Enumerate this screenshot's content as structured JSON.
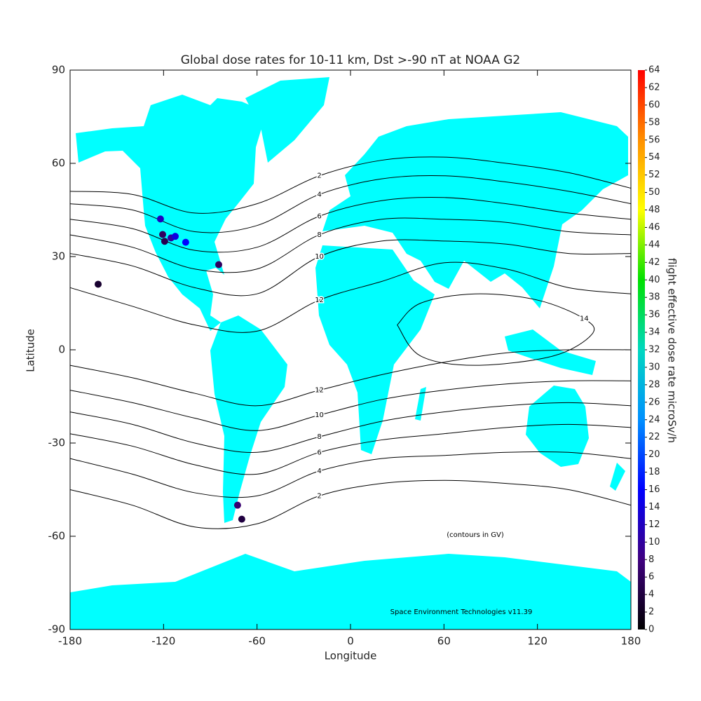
{
  "chart_data": {
    "type": "map",
    "title": "Global dose rates for 10-11 km, Dst >-90 nT at NOAA G2",
    "x_label": "Longitude",
    "y_label": "Latitude",
    "xlim": [
      -180,
      180
    ],
    "ylim": [
      -90,
      90
    ],
    "xticks": [
      -180,
      -120,
      -60,
      0,
      60,
      120,
      180
    ],
    "yticks": [
      -90,
      -60,
      -30,
      0,
      30,
      60,
      90
    ],
    "land_color": "#00ffff",
    "contour_color": "#000000",
    "annotations": [
      "(contours in GV)",
      "Space Environment Technologies v11.39"
    ],
    "colorbar": {
      "label": "flight effective dose rate microSv/h",
      "clim": [
        0,
        64
      ],
      "ticks": [
        0,
        2,
        4,
        6,
        8,
        10,
        12,
        14,
        16,
        18,
        20,
        22,
        24,
        26,
        28,
        30,
        32,
        34,
        36,
        38,
        40,
        42,
        44,
        46,
        48,
        50,
        52,
        54,
        56,
        58,
        60,
        62,
        64
      ],
      "colors": [
        "#000000",
        "#400080",
        "#0000ff",
        "#0090ff",
        "#00d8c0",
        "#00e000",
        "#ffff00",
        "#ff9000",
        "#ff0000"
      ]
    },
    "points": {
      "x": [
        -122,
        -120.6,
        -119.3,
        -115.2,
        -112.5,
        -105.8,
        -84.6,
        -162,
        -72.5,
        -69.8
      ],
      "y": [
        42.1,
        37.1,
        34.9,
        36,
        36.5,
        34.6,
        27.4,
        21.1,
        -50,
        -54.5
      ],
      "values": [
        12,
        6,
        5,
        10,
        14,
        16,
        6,
        3,
        7,
        4
      ]
    },
    "contours": [
      {
        "level": 2,
        "lon": [
          -180,
          -140,
          -100,
          -60,
          -20,
          20,
          60,
          100,
          140,
          180
        ],
        "lat": [
          51,
          50,
          44,
          47,
          56,
          61,
          62,
          60,
          57,
          52
        ]
      },
      {
        "level": 4,
        "lon": [
          -180,
          -140,
          -100,
          -60,
          -20,
          20,
          60,
          100,
          140,
          180
        ],
        "lat": [
          47,
          45,
          38,
          40,
          50,
          55,
          56,
          54,
          51,
          47
        ]
      },
      {
        "level": 6,
        "lon": [
          -180,
          -140,
          -100,
          -60,
          -20,
          20,
          60,
          100,
          140,
          180
        ],
        "lat": [
          42,
          39,
          32,
          33,
          43,
          48,
          49,
          47,
          44,
          42
        ]
      },
      {
        "level": 8,
        "lon": [
          -180,
          -140,
          -100,
          -60,
          -20,
          20,
          60,
          100,
          140,
          180
        ],
        "lat": [
          37,
          33,
          26,
          26,
          37,
          42,
          42,
          41,
          38,
          37
        ]
      },
      {
        "level": 10,
        "lon": [
          -180,
          -140,
          -100,
          -60,
          -20,
          20,
          60,
          100,
          140,
          180
        ],
        "lat": [
          31,
          27,
          20,
          18,
          30,
          35,
          35,
          34,
          31,
          31
        ]
      },
      {
        "level": 12,
        "lon": [
          -180,
          -140,
          -100,
          -60,
          -20,
          20,
          60,
          100,
          140,
          180
        ],
        "lat": [
          20,
          14,
          8,
          6,
          16,
          22,
          28,
          26,
          20,
          18
        ]
      },
      {
        "level": 14,
        "lon": [
          30,
          45,
          80,
          120,
          150,
          155,
          130,
          80,
          45,
          30
        ],
        "lat": [
          8,
          15,
          18,
          16,
          10,
          5,
          -2,
          -5,
          -2,
          8
        ]
      },
      {
        "level": 12,
        "lon": [
          -180,
          -140,
          -100,
          -60,
          -20,
          20,
          60,
          100,
          140,
          180
        ],
        "lat": [
          -5,
          -9,
          -14,
          -18,
          -13,
          -8,
          -4,
          -1,
          0,
          0
        ]
      },
      {
        "level": 10,
        "lon": [
          -180,
          -140,
          -100,
          -60,
          -20,
          20,
          60,
          100,
          140,
          180
        ],
        "lat": [
          -13,
          -17,
          -22,
          -26,
          -21,
          -16,
          -13,
          -11,
          -10,
          -10
        ]
      },
      {
        "level": 8,
        "lon": [
          -180,
          -140,
          -100,
          -60,
          -20,
          20,
          60,
          100,
          140,
          180
        ],
        "lat": [
          -20,
          -24,
          -30,
          -33,
          -28,
          -23,
          -20,
          -18,
          -17,
          -18
        ]
      },
      {
        "level": 6,
        "lon": [
          -180,
          -140,
          -100,
          -60,
          -20,
          20,
          60,
          100,
          140,
          180
        ],
        "lat": [
          -27,
          -31,
          -37,
          -40,
          -33,
          -29,
          -27,
          -25,
          -24,
          -25
        ]
      },
      {
        "level": 4,
        "lon": [
          -180,
          -140,
          -100,
          -60,
          -20,
          20,
          60,
          100,
          140,
          180
        ],
        "lat": [
          -35,
          -40,
          -46,
          -47,
          -39,
          -35,
          -34,
          -33,
          -33,
          -35
        ]
      },
      {
        "level": 2,
        "lon": [
          -180,
          -140,
          -100,
          -60,
          -20,
          20,
          60,
          100,
          140,
          180
        ],
        "lat": [
          -45,
          -50,
          -57,
          -56,
          -47,
          -43,
          -42,
          -43,
          -45,
          -50
        ]
      }
    ]
  }
}
